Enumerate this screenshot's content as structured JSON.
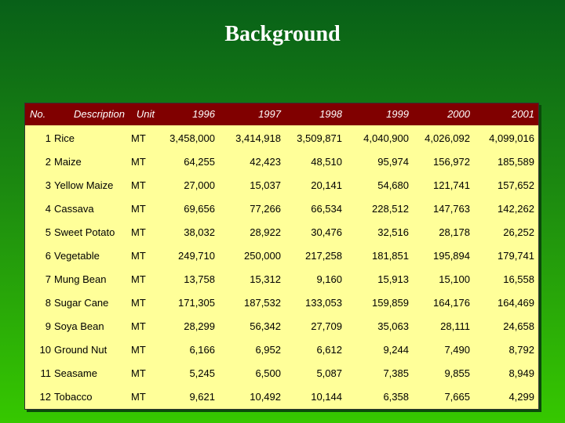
{
  "title": "Background",
  "table": {
    "header": [
      "No.",
      "Description",
      "Unit",
      "1996",
      "1997",
      "1998",
      "1999",
      "2000",
      "2001"
    ],
    "rows": [
      [
        "1",
        "Rice",
        "MT",
        "3,458,000",
        "3,414,918",
        "3,509,871",
        "4,040,900",
        "4,026,092",
        "4,099,016"
      ],
      [
        "2",
        "Maize",
        "MT",
        "64,255",
        "42,423",
        "48,510",
        "95,974",
        "156,972",
        "185,589"
      ],
      [
        "3",
        "Yellow Maize",
        "MT",
        "27,000",
        "15,037",
        "20,141",
        "54,680",
        "121,741",
        "157,652"
      ],
      [
        "4",
        "Cassava",
        "MT",
        "69,656",
        "77,266",
        "66,534",
        "228,512",
        "147,763",
        "142,262"
      ],
      [
        "5",
        "Sweet Potato",
        "MT",
        "38,032",
        "28,922",
        "30,476",
        "32,516",
        "28,178",
        "26,252"
      ],
      [
        "6",
        "Vegetable",
        "MT",
        "249,710",
        "250,000",
        "217,258",
        "181,851",
        "195,894",
        "179,741"
      ],
      [
        "7",
        "Mung Bean",
        "MT",
        "13,758",
        "15,312",
        "9,160",
        "15,913",
        "15,100",
        "16,558"
      ],
      [
        "8",
        "Sugar Cane",
        "MT",
        "171,305",
        "187,532",
        "133,053",
        "159,859",
        "164,176",
        "164,469"
      ],
      [
        "9",
        "Soya Bean",
        "MT",
        "28,299",
        "56,342",
        "27,709",
        "35,063",
        "28,111",
        "24,658"
      ],
      [
        "10",
        "Ground Nut",
        "MT",
        "6,166",
        "6,952",
        "6,612",
        "9,244",
        "7,490",
        "8,792"
      ],
      [
        "11",
        "Seasame",
        "MT",
        "5,245",
        "6,500",
        "5,087",
        "7,385",
        "9,855",
        "8,949"
      ],
      [
        "12",
        "Tobacco",
        "MT",
        "9,621",
        "10,492",
        "10,144",
        "6,358",
        "7,665",
        "4,299"
      ]
    ]
  }
}
